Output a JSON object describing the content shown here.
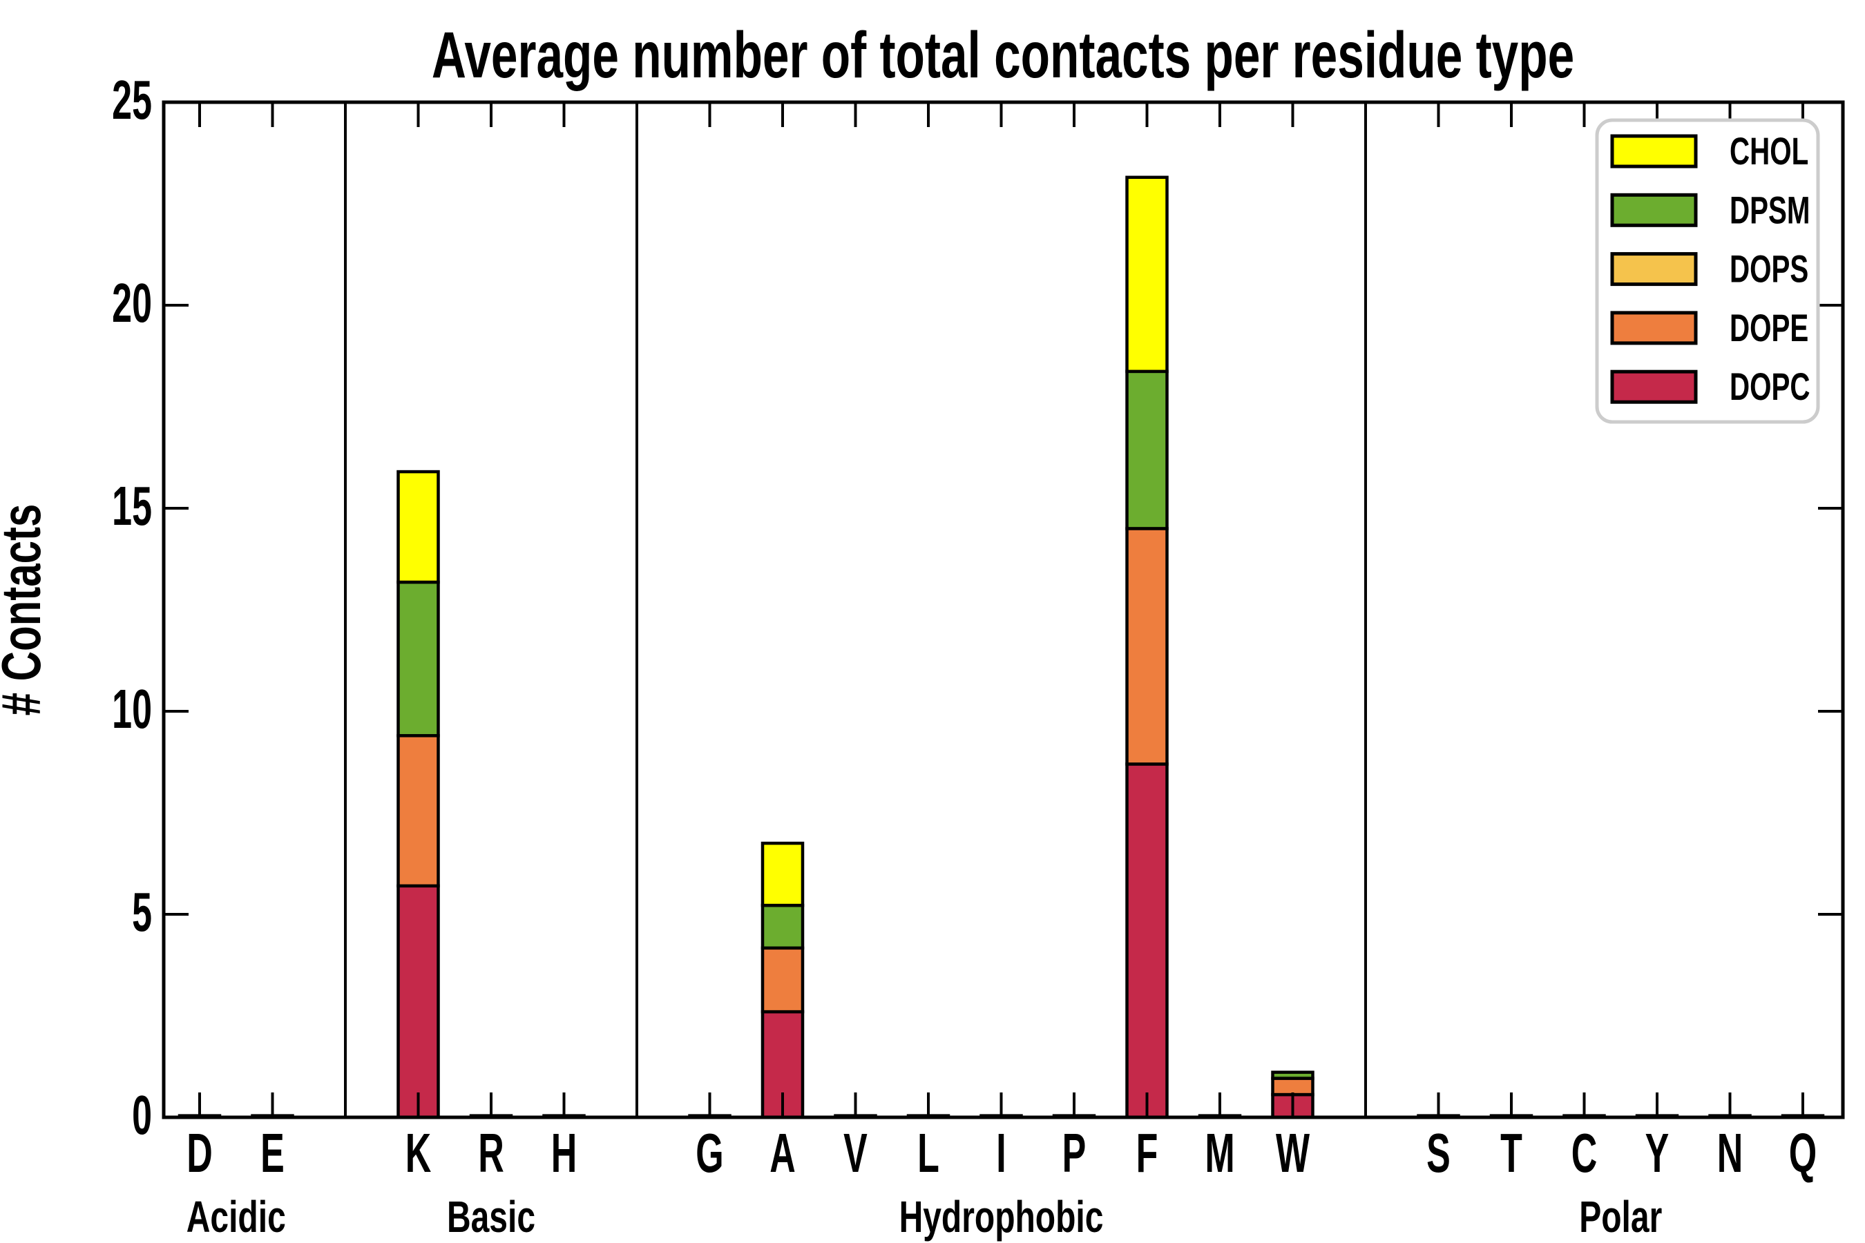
{
  "chart_data": {
    "type": "bar",
    "stacked": true,
    "title": "Average number of total contacts per residue type",
    "xlabel": "",
    "ylabel": "# Contacts",
    "ylim": [
      0,
      25
    ],
    "yticks": [
      0,
      5,
      10,
      15,
      20,
      25
    ],
    "grid": false,
    "legend_position": "upper right",
    "background": "#ffffff",
    "categories": [
      "D",
      "E",
      "K",
      "R",
      "H",
      "G",
      "A",
      "V",
      "L",
      "I",
      "P",
      "F",
      "M",
      "W",
      "S",
      "T",
      "C",
      "Y",
      "N",
      "Q"
    ],
    "groups": [
      {
        "label": "Acidic",
        "categories": [
          "D",
          "E"
        ]
      },
      {
        "label": "Basic",
        "categories": [
          "K",
          "R",
          "H"
        ]
      },
      {
        "label": "Hydrophobic",
        "categories": [
          "G",
          "A",
          "V",
          "L",
          "I",
          "P",
          "F",
          "M",
          "W"
        ]
      },
      {
        "label": "Polar",
        "categories": [
          "S",
          "T",
          "C",
          "Y",
          "N",
          "Q"
        ]
      }
    ],
    "series": [
      {
        "name": "DOPC",
        "color": "#C5294A",
        "values": [
          0.04,
          0.04,
          5.7,
          0.04,
          0.04,
          0.04,
          2.6,
          0.04,
          0.04,
          0.04,
          0.04,
          8.7,
          0.04,
          0.56,
          0.04,
          0.04,
          0.04,
          0.04,
          0.04,
          0.04
        ]
      },
      {
        "name": "DOPE",
        "color": "#EE7E3E",
        "values": [
          0,
          0,
          3.7,
          0,
          0,
          0,
          1.57,
          0,
          0,
          0,
          0,
          5.8,
          0,
          0.4,
          0,
          0,
          0,
          0,
          0,
          0
        ]
      },
      {
        "name": "DOPS",
        "color": "#F5C34C",
        "values": [
          0,
          0,
          0,
          0,
          0,
          0,
          0,
          0,
          0,
          0,
          0,
          0,
          0,
          0,
          0,
          0,
          0,
          0,
          0,
          0
        ]
      },
      {
        "name": "DPSM",
        "color": "#6CAD2F",
        "values": [
          0,
          0,
          3.78,
          0,
          0,
          0,
          1.05,
          0,
          0,
          0,
          0,
          3.87,
          0,
          0.15,
          0,
          0,
          0,
          0,
          0,
          0
        ]
      },
      {
        "name": "CHOL",
        "color": "#FFFF00",
        "values": [
          0,
          0,
          2.72,
          0,
          0,
          0,
          1.53,
          0,
          0,
          0,
          0,
          4.78,
          0,
          0,
          0,
          0,
          0,
          0,
          0,
          0
        ]
      }
    ],
    "legend_order_top_to_bottom": [
      "CHOL",
      "DPSM",
      "DOPS",
      "DOPE",
      "DOPC"
    ],
    "totals_note": {
      "K": 15.9,
      "A": 6.75,
      "F": 23.15,
      "W": 1.11
    },
    "axis_color": "#000000",
    "legend_border_color": "#CCCCCC"
  }
}
